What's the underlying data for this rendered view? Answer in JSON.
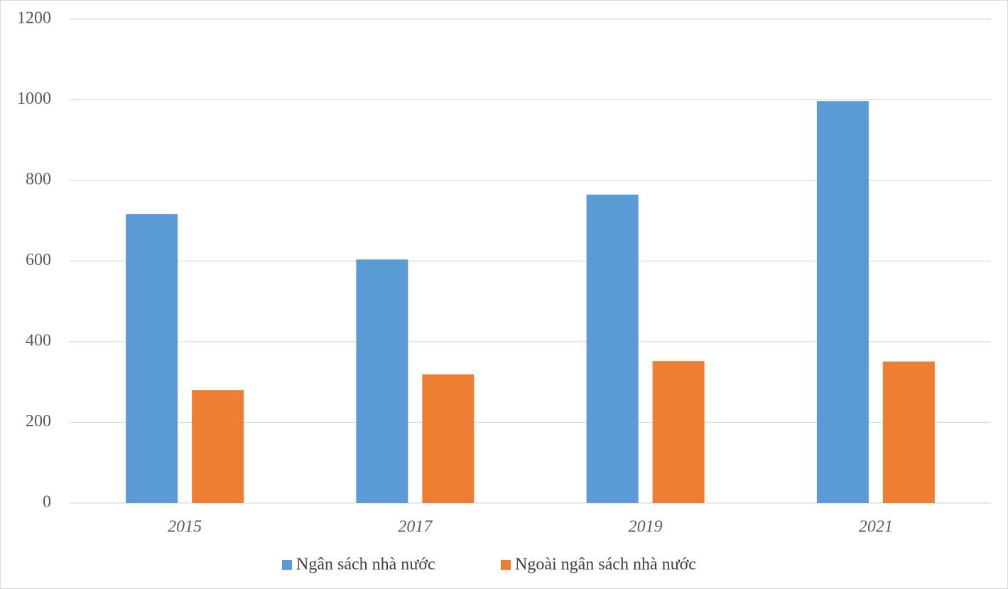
{
  "chart_data": {
    "type": "bar",
    "categories": [
      "2015",
      "2017",
      "2019",
      "2021"
    ],
    "series": [
      {
        "name": "Ngân sách nhà nước",
        "color": "#5b9bd5",
        "values": [
          717,
          604,
          765,
          997
        ]
      },
      {
        "name": "Ngoài ngân sách nhà nước",
        "color": "#ed7d31",
        "values": [
          280,
          319,
          352,
          351
        ]
      }
    ],
    "ylim": [
      0,
      1200
    ],
    "yticks": [
      0,
      200,
      400,
      600,
      800,
      1000,
      1200
    ],
    "grid": true
  }
}
